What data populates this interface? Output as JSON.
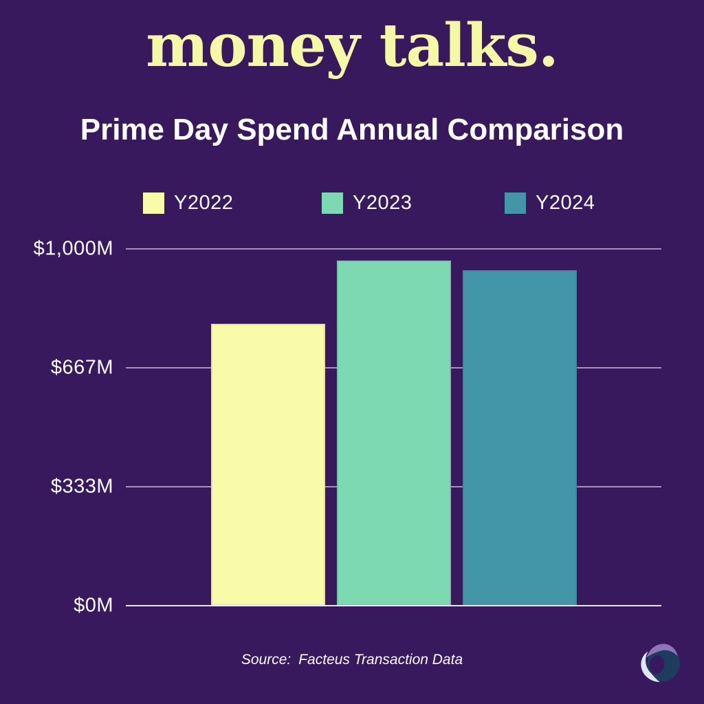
{
  "brand": {
    "title": "money talks."
  },
  "chart_data": {
    "type": "bar",
    "title": "Prime Day Spend Annual Comparison",
    "series": [
      {
        "name": "Y2022",
        "value": 790,
        "color": "#F9FBA8"
      },
      {
        "name": "Y2023",
        "value": 968,
        "color": "#7CD9B1"
      },
      {
        "name": "Y2024",
        "value": 940,
        "color": "#4396A7"
      }
    ],
    "ylim": [
      0,
      1000
    ],
    "yticks": [
      {
        "label": "$0M",
        "value": 0
      },
      {
        "label": "$333M",
        "value": 333.33
      },
      {
        "label": "$667M",
        "value": 666.67
      },
      {
        "label": "$1,000M",
        "value": 1000
      }
    ],
    "grid": "horizontal",
    "legend_position": "top"
  },
  "footer": {
    "source_label": "Source:",
    "source_text": "Facteus Transaction Data"
  },
  "colors": {
    "background": "#38195E",
    "title_yellow": "#F7F8A6",
    "text": "#FFFFFF",
    "gridline": "#E2DEF3",
    "logo_navy": "#1E3C5E",
    "logo_purple": "#8F74BD",
    "logo_white": "#DDE7F5"
  }
}
